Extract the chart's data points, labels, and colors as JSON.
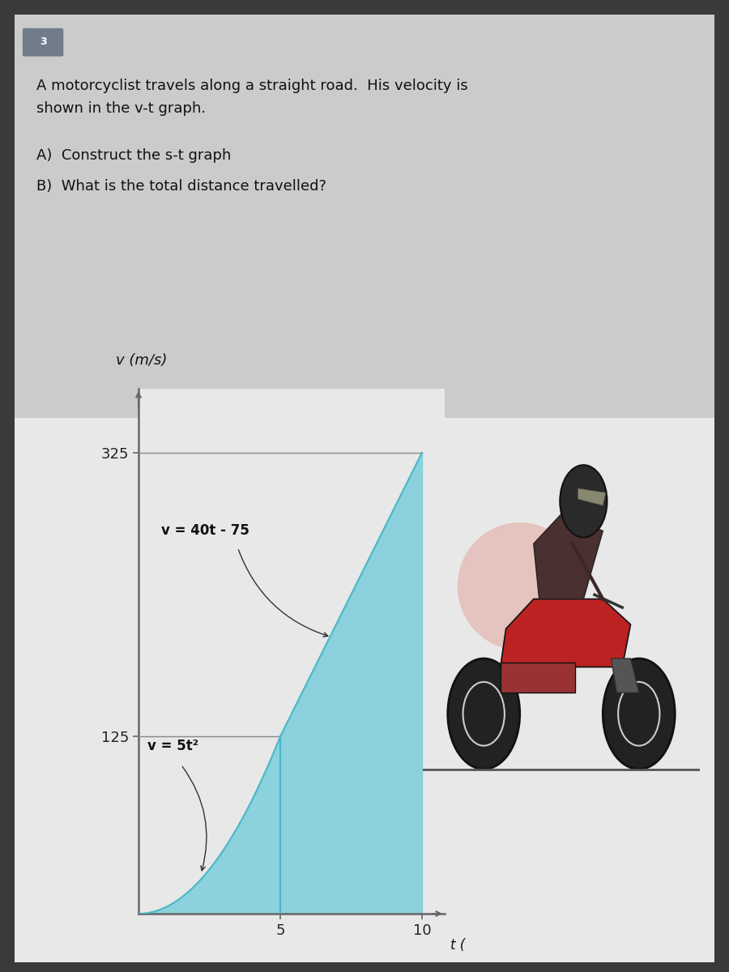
{
  "background_outer": "#3a3a3a",
  "background_card": "#cbcbcb",
  "background_graph": "#f2f2f2",
  "question_number": "3",
  "question_number_bg": "#707c8a",
  "problem_text_line1": "A motorcyclist travels along a straight road.  His velocity is",
  "problem_text_line2": "shown in the v-t graph.",
  "part_a": "A)  Construct the s-t graph",
  "part_b": "B)  What is the total distance travelled?",
  "ylabel_label": "v (m/s)",
  "xlabel_label": "t (",
  "ytick_labels": [
    "125",
    "325"
  ],
  "ytick_values": [
    125,
    325
  ],
  "xtick_labels": [
    "5",
    "10"
  ],
  "xtick_values": [
    5,
    10
  ],
  "curve1_label": "v = 5t²",
  "curve2_label": "v = 40t - 75",
  "fill_color": "#7ecfdb",
  "axis_color": "#666666",
  "tick_color": "#222222",
  "t_transition": 5,
  "t_end": 10,
  "v_at_t5": 125,
  "v_at_t10": 325,
  "graph_box_color": "#e8e8e8"
}
